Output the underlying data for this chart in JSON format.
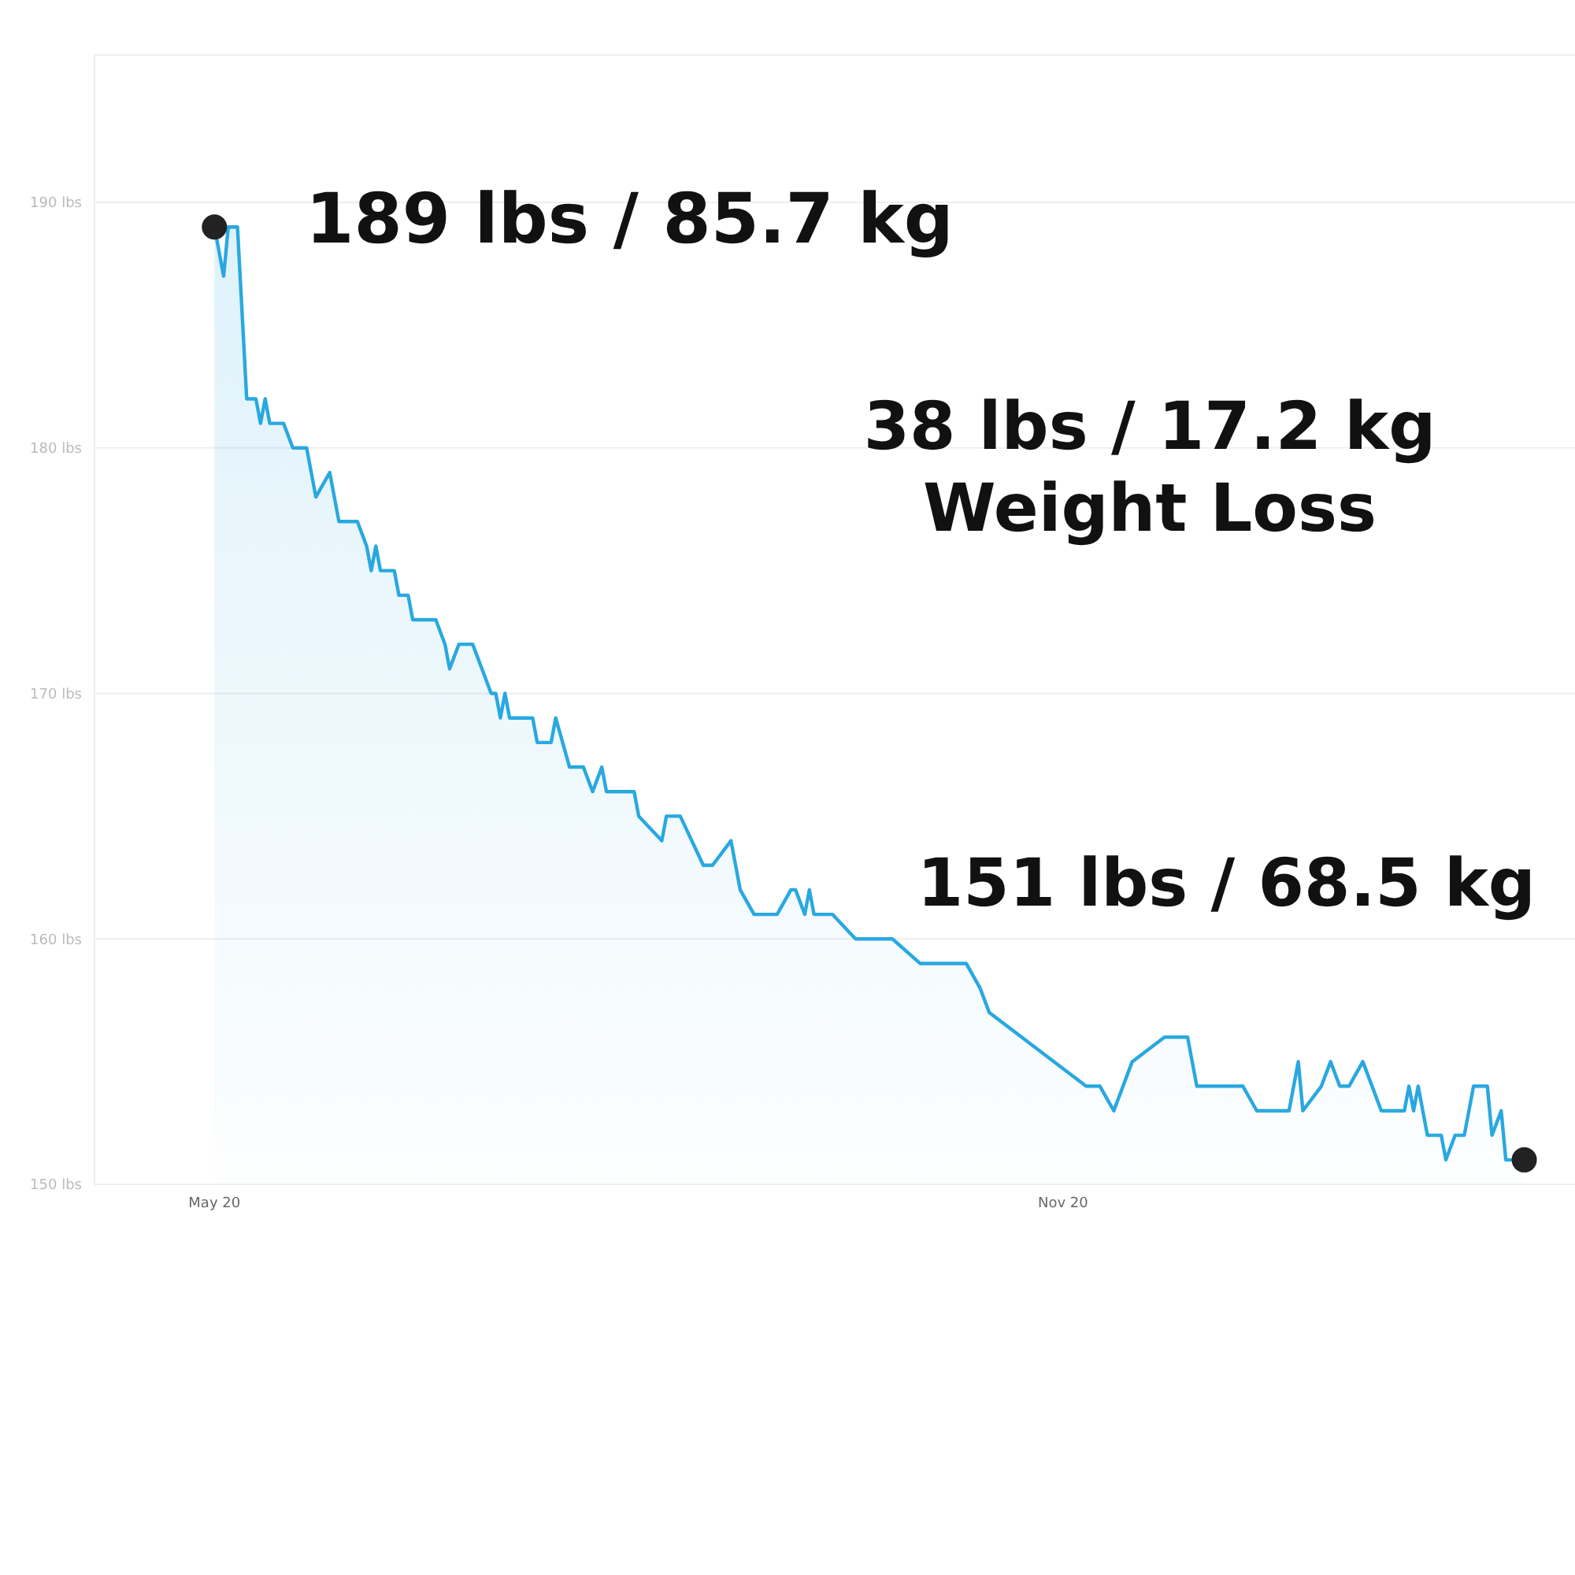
{
  "chart_data": {
    "type": "area",
    "x": [
      "2020-05-01",
      "2020-05-03",
      "2020-05-04",
      "2020-05-06",
      "2020-05-08",
      "2020-05-10",
      "2020-05-11",
      "2020-05-12",
      "2020-05-13",
      "2020-05-16",
      "2020-05-18",
      "2020-05-21",
      "2020-05-23",
      "2020-05-26",
      "2020-05-28",
      "2020-06-01",
      "2020-06-03",
      "2020-06-04",
      "2020-06-05",
      "2020-06-06",
      "2020-06-09",
      "2020-06-10",
      "2020-06-12",
      "2020-06-13",
      "2020-06-18",
      "2020-06-20",
      "2020-06-21",
      "2020-06-23",
      "2020-06-26",
      "2020-06-28",
      "2020-06-30",
      "2020-07-01",
      "2020-07-02",
      "2020-07-03",
      "2020-07-04",
      "2020-07-09",
      "2020-07-10",
      "2020-07-13",
      "2020-07-14",
      "2020-07-17",
      "2020-07-20",
      "2020-07-22",
      "2020-07-24",
      "2020-07-25",
      "2020-07-31",
      "2020-08-01",
      "2020-08-06",
      "2020-08-07",
      "2020-08-10",
      "2020-08-15",
      "2020-08-17",
      "2020-08-21",
      "2020-08-23",
      "2020-08-26",
      "2020-08-31",
      "2020-09-03",
      "2020-09-04",
      "2020-09-06",
      "2020-09-07",
      "2020-09-08",
      "2020-09-12",
      "2020-09-17",
      "2020-09-25",
      "2020-10-01",
      "2020-10-09",
      "2020-10-11",
      "2020-10-14",
      "2020-10-16",
      "2020-11-06",
      "2020-11-09",
      "2020-11-12",
      "2020-11-16",
      "2020-11-23",
      "2020-11-28",
      "2020-11-30",
      "2020-12-10",
      "2020-12-13",
      "2020-12-18",
      "2020-12-20",
      "2020-12-22",
      "2020-12-23",
      "2020-12-27",
      "2020-12-29",
      "2020-12-31",
      "2021-01-02",
      "2021-01-05",
      "2021-01-09",
      "2021-01-14",
      "2021-01-15",
      "2021-01-16",
      "2021-01-17",
      "2021-01-19",
      "2021-01-22",
      "2021-01-23",
      "2021-01-25",
      "2021-01-27",
      "2021-01-29",
      "2021-02-01",
      "2021-02-02",
      "2021-02-04",
      "2021-02-05",
      "2021-02-09"
    ],
    "series": [
      {
        "color": "#29a8e0",
        "values": [
          189,
          187,
          189,
          189,
          182,
          182,
          181,
          182,
          181,
          181,
          180,
          180,
          178,
          179,
          177,
          177,
          176,
          175,
          176,
          175,
          175,
          174,
          174,
          173,
          173,
          172,
          171,
          172,
          172,
          171,
          170,
          170,
          169,
          170,
          169,
          169,
          168,
          168,
          169,
          167,
          167,
          166,
          167,
          166,
          166,
          165,
          164,
          165,
          165,
          163,
          163,
          164,
          162,
          161,
          161,
          162,
          162,
          161,
          162,
          161,
          161,
          160,
          160,
          159,
          159,
          159,
          158,
          157,
          154,
          154,
          153,
          155,
          156,
          156,
          154,
          154,
          153,
          153,
          153,
          155,
          153,
          154,
          155,
          154,
          154,
          155,
          153,
          153,
          154,
          153,
          154,
          152,
          152,
          151,
          152,
          152,
          154,
          154,
          152,
          153,
          151,
          151
        ]
      }
    ],
    "xlim": [
      "2020-04-05",
      "2021-02-20"
    ],
    "xticks": [
      {
        "value": "2020-05-01",
        "label": "May 20"
      },
      {
        "value": "2020-11-01",
        "label": "Nov 20"
      }
    ],
    "ylim": [
      150,
      196
    ],
    "yticks": [
      {
        "value": 150,
        "label": "150 lbs"
      },
      {
        "value": 160,
        "label": "160 lbs"
      },
      {
        "value": 170,
        "label": "170 lbs"
      },
      {
        "value": 180,
        "label": "180 lbs"
      },
      {
        "value": 190,
        "label": "190 lbs"
      }
    ],
    "grid": "y",
    "annotations": [
      {
        "text": "189 lbs / 85.7 kg",
        "x": "2020-05-01",
        "y": 189
      },
      "38 lbs / 17.2 kg\nWeight Loss",
      "151 lbs / 68.5 kg"
    ]
  }
}
